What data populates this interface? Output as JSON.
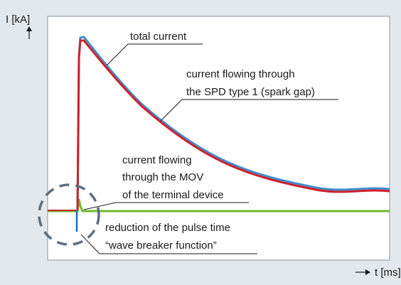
{
  "axes": {
    "y_label": "I [kA]",
    "x_label": "t [ms]"
  },
  "annotations": {
    "total": [
      "total current"
    ],
    "spd": [
      "current flowing through",
      "the SPD type 1 (spark gap)"
    ],
    "mov": [
      "current flowing",
      "through the MOV",
      "of the terminal device"
    ],
    "reduction": [
      "reduction of the pulse time",
      "“wave breaker function”"
    ]
  }
}
